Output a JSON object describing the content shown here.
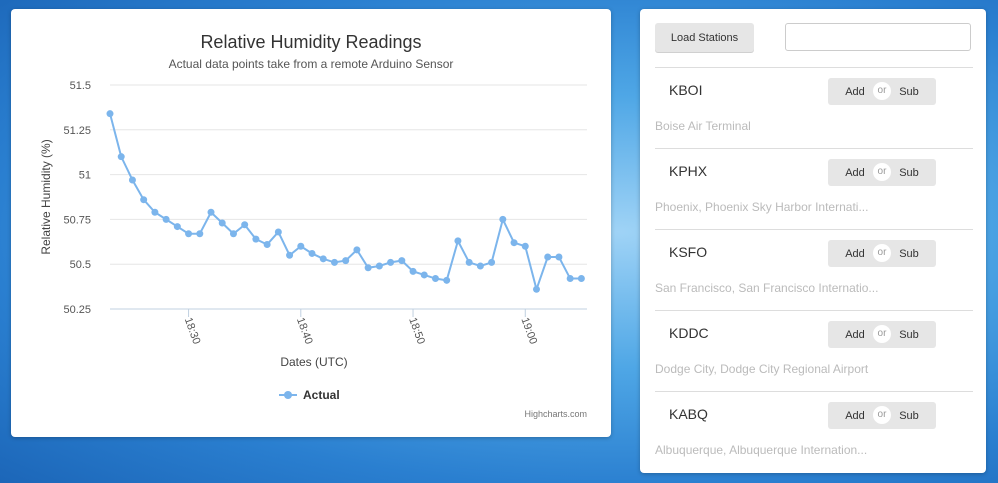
{
  "chart_data": {
    "type": "line",
    "title": "Relative Humidity Readings",
    "subtitle": "Actual data points take from a remote Arduino Sensor",
    "xlabel": "Dates (UTC)",
    "ylabel": "Relative Humidity (%)",
    "x_ticks": [
      "18:30",
      "18:40",
      "18:50",
      "19:00"
    ],
    "y_ticks": [
      "51.5",
      "51.25",
      "51",
      "50.75",
      "50.5",
      "50.25"
    ],
    "ylim": [
      50.25,
      51.5
    ],
    "xlim_minutes_after_18": [
      23.0,
      65.5
    ],
    "x_minutes_after_18": [
      23.0,
      24.0,
      25.0,
      26.0,
      27.0,
      28.0,
      29.0,
      30.0,
      31.0,
      32.0,
      33.0,
      34.0,
      35.0,
      36.0,
      37.0,
      38.0,
      39.0,
      40.0,
      41.0,
      42.0,
      43.0,
      44.0,
      45.0,
      46.0,
      47.0,
      48.0,
      49.0,
      50.0,
      51.0,
      52.0,
      53.0,
      54.0,
      55.0,
      56.0,
      57.0,
      58.0,
      59.0,
      60.0,
      61.0,
      62.0,
      63.0,
      64.0,
      65.0
    ],
    "series": [
      {
        "name": "Actual",
        "color": "#7cb5ec",
        "values": [
          51.34,
          51.1,
          50.97,
          50.86,
          50.79,
          50.75,
          50.71,
          50.67,
          50.67,
          50.79,
          50.73,
          50.67,
          50.72,
          50.64,
          50.61,
          50.68,
          50.55,
          50.6,
          50.56,
          50.53,
          50.51,
          50.52,
          50.58,
          50.48,
          50.49,
          50.51,
          50.52,
          50.46,
          50.44,
          50.42,
          50.41,
          50.63,
          50.51,
          50.49,
          50.51,
          50.75,
          50.62,
          50.6,
          50.36,
          50.54,
          50.54,
          50.42,
          50.42
        ]
      }
    ],
    "grid": true,
    "legend": "bottom-center",
    "credits": "Highcharts.com"
  },
  "controls": {
    "load_label": "Load Stations",
    "search_value": "",
    "search_placeholder": ""
  },
  "stations": [
    {
      "code": "KBOI",
      "name": "Boise Air Terminal",
      "add_label": "Add",
      "or_label": "or",
      "sub_label": "Sub"
    },
    {
      "code": "KPHX",
      "name": "Phoenix, Phoenix Sky Harbor Internati...",
      "add_label": "Add",
      "or_label": "or",
      "sub_label": "Sub"
    },
    {
      "code": "KSFO",
      "name": "San Francisco, San Francisco Internatio...",
      "add_label": "Add",
      "or_label": "or",
      "sub_label": "Sub"
    },
    {
      "code": "KDDC",
      "name": "Dodge City, Dodge City Regional Airport",
      "add_label": "Add",
      "or_label": "or",
      "sub_label": "Sub"
    },
    {
      "code": "KABQ",
      "name": "Albuquerque, Albuquerque Internation...",
      "add_label": "Add",
      "or_label": "or",
      "sub_label": "Sub"
    }
  ]
}
